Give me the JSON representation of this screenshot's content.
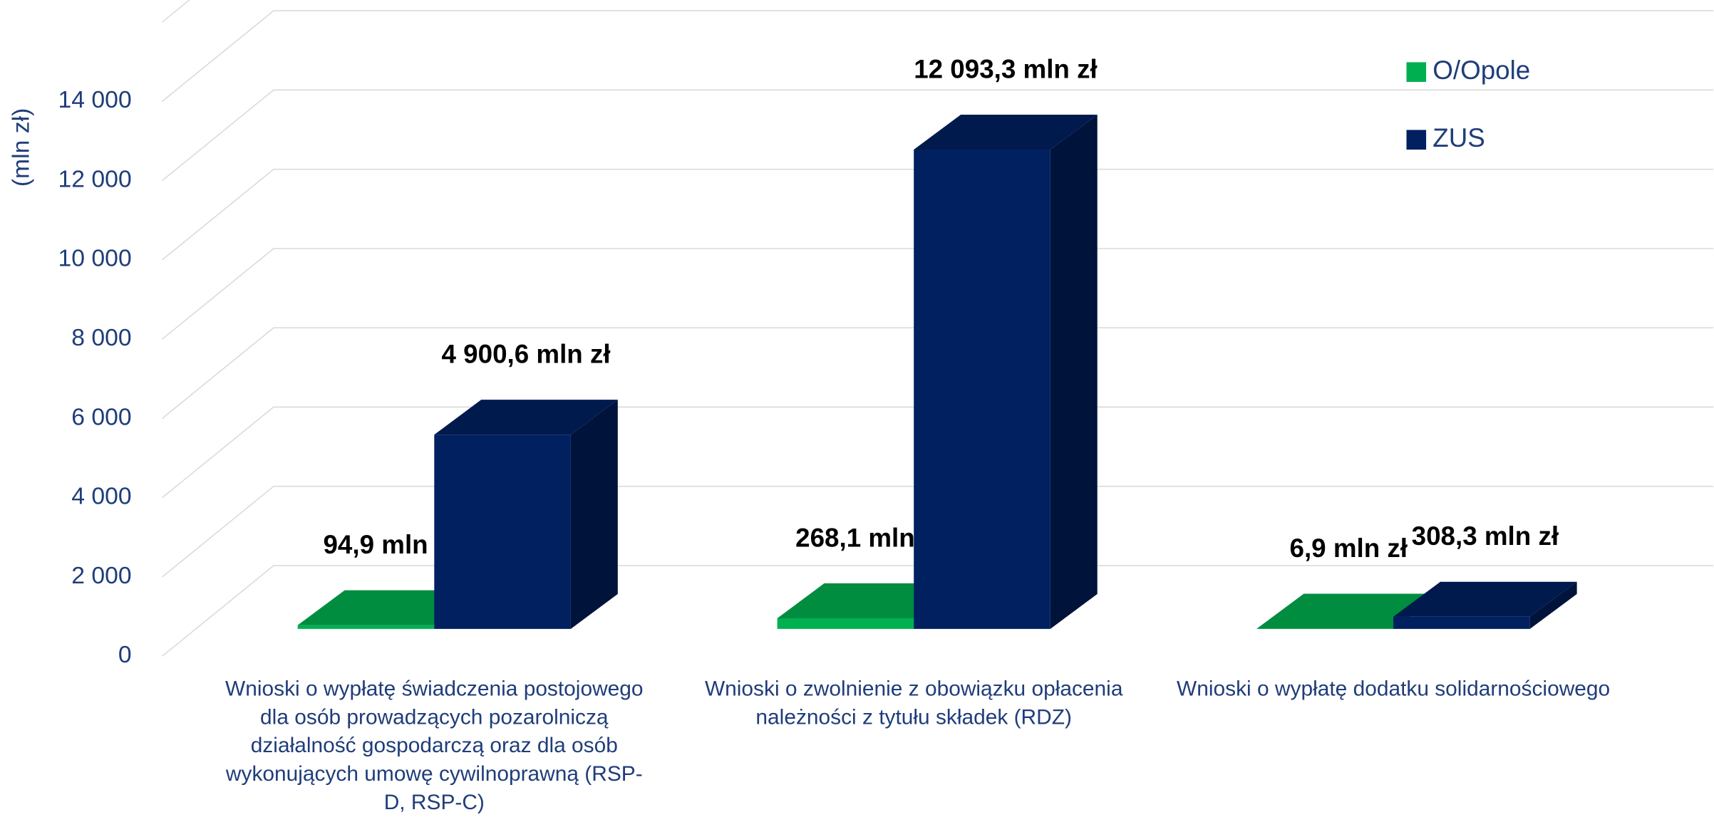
{
  "chart_data": {
    "type": "bar3d",
    "y_label": "(mln zł)",
    "categories": [
      "Wnioski o wypłatę świadczenia postojowego dla osób prowadzących pozarolniczą działalność gospodarczą oraz dla osób wykonujących umowę cywilnoprawną (RSP-D, RSP-C)",
      "Wnioski o zwolnienie z obowiązku opłacenia należności z tytułu składek (RDZ)",
      "Wnioski o wypłatę dodatku solidarnościowego"
    ],
    "series": [
      {
        "name": "O/Opole",
        "color": "#00b050",
        "values": [
          94.9,
          268.1,
          6.9
        ],
        "value_labels": [
          "94,9 mln zł",
          "268,1 mln zł",
          "6,9 mln zł"
        ]
      },
      {
        "name": "ZUS",
        "color": "#002060",
        "values": [
          4900.6,
          12093.3,
          308.3
        ],
        "value_labels": [
          "4 900,6 mln zł",
          "12 093,3 mln zł",
          "308,3 mln zł"
        ]
      }
    ],
    "ylim": [
      0,
      16000
    ],
    "yticks": [
      0,
      {
        "value": 2000,
        "label": "2 000"
      },
      {
        "value": 4000,
        "label": "4 000"
      },
      {
        "value": 6000,
        "label": "6 000"
      },
      {
        "value": 8000,
        "label": "8 000"
      },
      {
        "value": 10000,
        "label": "10 000"
      },
      {
        "value": 12000,
        "label": "12 000"
      },
      {
        "value": 14000,
        "label": "14 000"
      }
    ],
    "legend": "top-right",
    "grid": true
  }
}
